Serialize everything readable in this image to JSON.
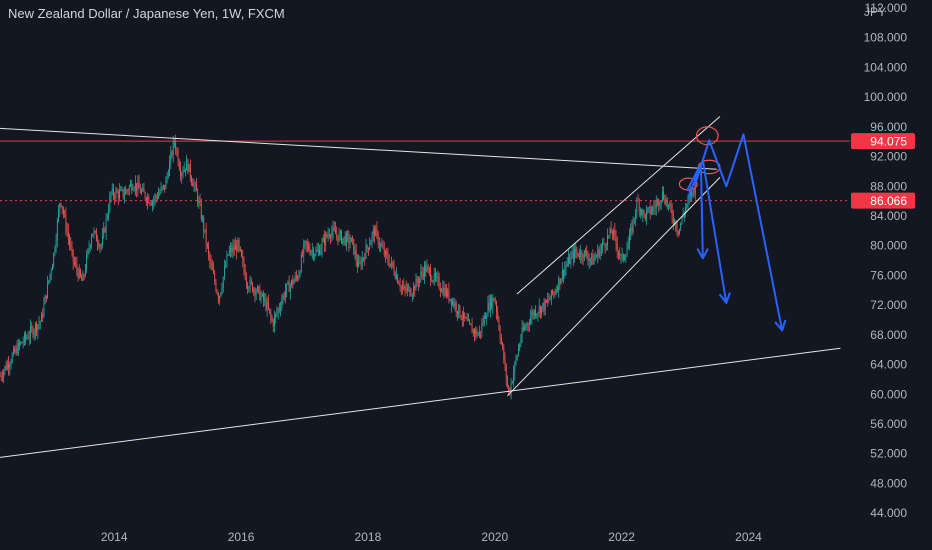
{
  "header": {
    "title": "New Zealand Dollar / Japanese Yen, 1W, FXCM",
    "currency": "JPY"
  },
  "colors": {
    "background": "#131722",
    "up": "#26a69a",
    "down": "#ef5350",
    "axis_text": "#b2b5be",
    "trendline": "#e6e6e6",
    "resistance": "#f23645",
    "projection": "#2962ff"
  },
  "chart_data": {
    "type": "candlestick",
    "x_unit": "year",
    "ylim": [
      42,
      112
    ],
    "xlim": [
      2012.2,
      2025.6
    ],
    "y_ticks": [
      "112.000",
      "108.000",
      "104.000",
      "100.000",
      "96.000",
      "92.000",
      "88.000",
      "84.000",
      "80.000",
      "76.000",
      "72.000",
      "68.000",
      "64.000",
      "60.000",
      "56.000",
      "52.000",
      "48.000",
      "44.000"
    ],
    "y_tick_values": [
      112,
      108,
      104,
      100,
      96,
      92,
      88,
      84,
      80,
      76,
      72,
      68,
      64,
      60,
      56,
      52,
      48,
      44
    ],
    "x_ticks": [
      "2014",
      "2016",
      "2018",
      "2020",
      "2022",
      "2024"
    ],
    "x_tick_values": [
      2014,
      2016,
      2018,
      2020,
      2022,
      2024
    ],
    "price_labels": [
      {
        "text": "94.075",
        "value": 94.075,
        "kind": "resistance"
      },
      {
        "text": "86.066",
        "value": 86.066,
        "kind": "dotted"
      }
    ],
    "price_path": [
      [
        2012.2,
        62.5
      ],
      [
        2012.5,
        66.5
      ],
      [
        2012.85,
        70
      ],
      [
        2013.05,
        79
      ],
      [
        2013.15,
        86.5
      ],
      [
        2013.35,
        78
      ],
      [
        2013.5,
        75
      ],
      [
        2013.65,
        82
      ],
      [
        2013.8,
        80
      ],
      [
        2013.95,
        87
      ],
      [
        2014.15,
        87
      ],
      [
        2014.3,
        88.5
      ],
      [
        2014.45,
        87
      ],
      [
        2014.6,
        86
      ],
      [
        2014.8,
        88
      ],
      [
        2014.95,
        94.2
      ],
      [
        2015.05,
        90
      ],
      [
        2015.15,
        91
      ],
      [
        2015.3,
        87
      ],
      [
        2015.4,
        83
      ],
      [
        2015.5,
        78
      ],
      [
        2015.65,
        73
      ],
      [
        2015.8,
        79
      ],
      [
        2015.95,
        80
      ],
      [
        2016.1,
        75
      ],
      [
        2016.25,
        74
      ],
      [
        2016.4,
        72
      ],
      [
        2016.5,
        69.5
      ],
      [
        2016.7,
        74
      ],
      [
        2016.9,
        76
      ],
      [
        2017.0,
        80
      ],
      [
        2017.2,
        79
      ],
      [
        2017.4,
        82
      ],
      [
        2017.6,
        81
      ],
      [
        2017.75,
        80.5
      ],
      [
        2017.85,
        77
      ],
      [
        2018.0,
        80
      ],
      [
        2018.1,
        82
      ],
      [
        2018.25,
        79
      ],
      [
        2018.4,
        77
      ],
      [
        2018.55,
        74
      ],
      [
        2018.7,
        74
      ],
      [
        2018.9,
        77
      ],
      [
        2019.0,
        76
      ],
      [
        2019.1,
        75
      ],
      [
        2019.3,
        73
      ],
      [
        2019.45,
        71
      ],
      [
        2019.6,
        69
      ],
      [
        2019.75,
        68
      ],
      [
        2019.9,
        72
      ],
      [
        2020.0,
        73
      ],
      [
        2020.12,
        66
      ],
      [
        2020.22,
        60
      ],
      [
        2020.32,
        64
      ],
      [
        2020.42,
        68
      ],
      [
        2020.6,
        71
      ],
      [
        2020.8,
        72
      ],
      [
        2020.95,
        74
      ],
      [
        2021.1,
        77
      ],
      [
        2021.25,
        79
      ],
      [
        2021.4,
        79
      ],
      [
        2021.55,
        78
      ],
      [
        2021.7,
        80
      ],
      [
        2021.85,
        82
      ],
      [
        2022.0,
        78
      ],
      [
        2022.1,
        80
      ],
      [
        2022.25,
        86
      ],
      [
        2022.35,
        84
      ],
      [
        2022.5,
        85
      ],
      [
        2022.65,
        87
      ],
      [
        2022.8,
        84
      ],
      [
        2022.9,
        82
      ],
      [
        2023.0,
        85
      ],
      [
        2023.1,
        87
      ],
      [
        2023.18,
        88
      ]
    ],
    "trendlines": [
      {
        "name": "upper-descending",
        "from": [
          2012.2,
          95.8
        ],
        "to": [
          2023.5,
          90.3
        ],
        "stroke": "trendline",
        "width": 1
      },
      {
        "name": "lower-long-term",
        "from": [
          2012.2,
          51.5
        ],
        "to": [
          2025.45,
          66.2
        ],
        "stroke": "trendline",
        "width": 1
      },
      {
        "name": "channel-upper",
        "from": [
          2020.35,
          73.5
        ],
        "to": [
          2023.55,
          97.4
        ],
        "stroke": "trendline",
        "width": 1
      },
      {
        "name": "channel-lower",
        "from": [
          2020.2,
          59.8
        ],
        "to": [
          2023.55,
          89.2
        ],
        "stroke": "trendline",
        "width": 1
      }
    ],
    "horizontal_lines": [
      {
        "name": "resistance-line",
        "value": 94.075,
        "style": "solid"
      },
      {
        "name": "dotted-level",
        "value": 86.066,
        "style": "dotted"
      }
    ],
    "ellipses": [
      {
        "name": "ellipse-low",
        "x": 2023.05,
        "y": 88.3,
        "rx_years": 0.14,
        "ry_value": 0.8
      },
      {
        "name": "ellipse-mid",
        "x": 2023.38,
        "y": 90.6,
        "rx_years": 0.17,
        "ry_value": 0.9
      },
      {
        "name": "ellipse-top",
        "x": 2023.35,
        "y": 94.8,
        "rx_years": 0.17,
        "ry_value": 1.2
      }
    ],
    "projections": [
      {
        "name": "projection-1",
        "points": [
          [
            2023.03,
            87.4
          ],
          [
            2023.25,
            91.0
          ],
          [
            2023.28,
            78.3
          ]
        ]
      },
      {
        "name": "projection-2",
        "points": [
          [
            2023.05,
            86.5
          ],
          [
            2023.28,
            91.5
          ],
          [
            2023.65,
            72.3
          ]
        ]
      },
      {
        "name": "projection-3",
        "points": [
          [
            2023.15,
            88.0
          ],
          [
            2023.38,
            94.2
          ],
          [
            2023.65,
            88.0
          ],
          [
            2023.92,
            95.0
          ],
          [
            2024.53,
            68.6
          ]
        ]
      }
    ]
  }
}
